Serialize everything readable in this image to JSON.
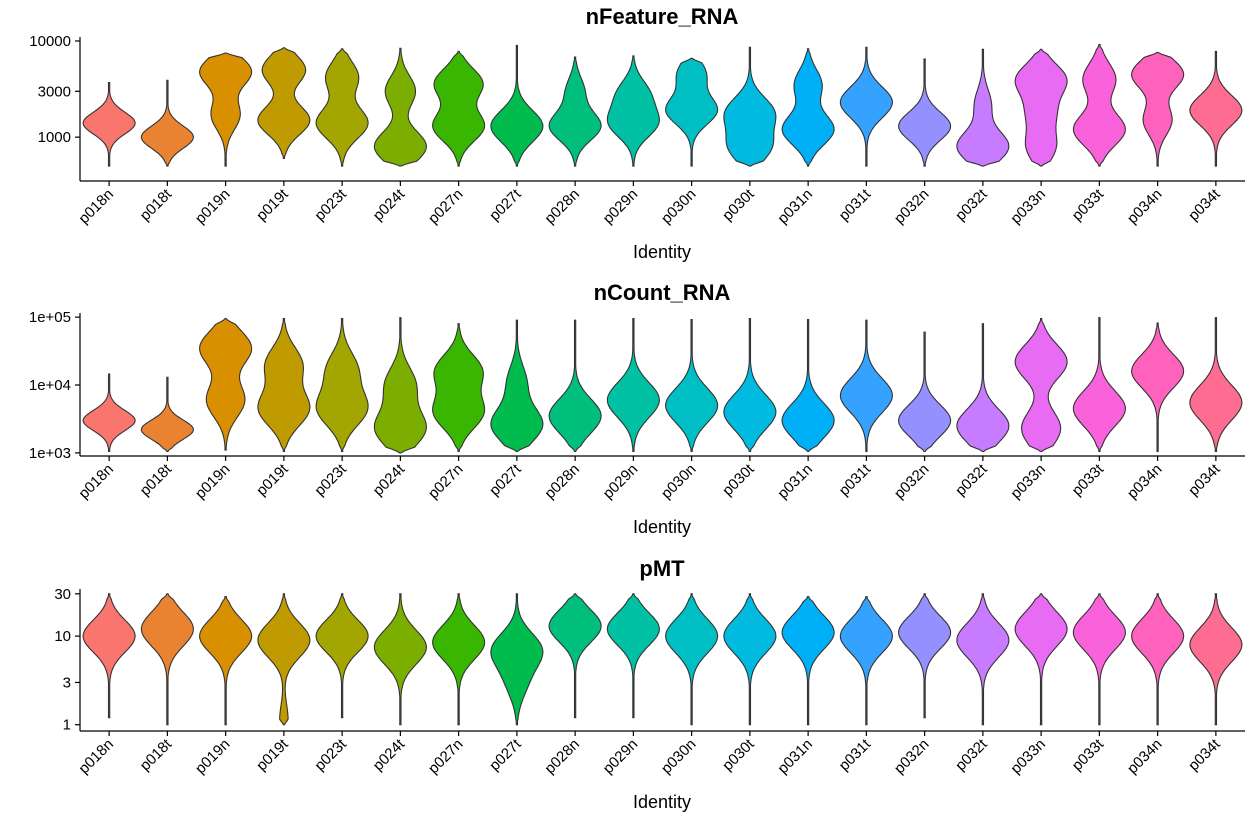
{
  "chart_data": [
    {
      "type": "violin",
      "title": "nFeature_RNA",
      "xlabel": "Identity",
      "ylabel": "",
      "yscale": "log",
      "ylim": [
        350,
        11000
      ],
      "yticks": [
        1000,
        3000,
        10000
      ],
      "ytick_labels": [
        "1000",
        "3000",
        "10000"
      ],
      "grid": false,
      "legend": "none",
      "categories": [
        "p018n",
        "p018t",
        "p019n",
        "p019t",
        "p023t",
        "p024t",
        "p027n",
        "p027t",
        "p028n",
        "p029n",
        "p030n",
        "p030t",
        "p031n",
        "p031t",
        "p032n",
        "p032t",
        "p033n",
        "p033t",
        "p034n",
        "p034t"
      ],
      "colors": [
        "#F8766D",
        "#EA8331",
        "#D89000",
        "#C09B00",
        "#A3A500",
        "#7CAE00",
        "#39B600",
        "#00BB4E",
        "#00BF7D",
        "#00C1A3",
        "#00BFC4",
        "#00BAE0",
        "#00B0F6",
        "#35A2FF",
        "#9590FF",
        "#C77CFF",
        "#E76BF3",
        "#FA62DB",
        "#FF62BC",
        "#FF6C91"
      ],
      "series": [
        {
          "min": 500,
          "max": 3700,
          "peaks": [
            [
              1400,
              0.9
            ]
          ]
        },
        {
          "min": 500,
          "max": 3900,
          "peaks": [
            [
              1000,
              1.0
            ]
          ]
        },
        {
          "min": 500,
          "max": 7500,
          "peaks": [
            [
              4800,
              1.0
            ],
            [
              1700,
              0.55
            ]
          ]
        },
        {
          "min": 600,
          "max": 8500,
          "peaks": [
            [
              5000,
              0.75
            ],
            [
              1500,
              0.9
            ]
          ]
        },
        {
          "min": 500,
          "max": 8300,
          "peaks": [
            [
              4200,
              0.6
            ],
            [
              1400,
              0.95
            ]
          ]
        },
        {
          "min": 500,
          "max": 8400,
          "peaks": [
            [
              3000,
              0.55
            ],
            [
              800,
              0.95
            ]
          ]
        },
        {
          "min": 500,
          "max": 7800,
          "peaks": [
            [
              3600,
              0.85
            ],
            [
              1300,
              0.9
            ]
          ]
        },
        {
          "min": 500,
          "max": 9000,
          "peaks": [
            [
              1300,
              0.95
            ]
          ]
        },
        {
          "min": 500,
          "max": 6800,
          "peaks": [
            [
              3000,
              0.35
            ],
            [
              1300,
              1.0
            ]
          ]
        },
        {
          "min": 500,
          "max": 7000,
          "peaks": [
            [
              2800,
              0.55
            ],
            [
              1400,
              0.85
            ]
          ]
        },
        {
          "min": 500,
          "max": 6600,
          "peaks": [
            [
              4500,
              0.5
            ],
            [
              1900,
              0.9
            ]
          ]
        },
        {
          "min": 500,
          "max": 8600,
          "peaks": [
            [
              1800,
              0.8
            ],
            [
              800,
              0.7
            ]
          ]
        },
        {
          "min": 500,
          "max": 8300,
          "peaks": [
            [
              3500,
              0.45
            ],
            [
              1200,
              0.85
            ]
          ]
        },
        {
          "min": 500,
          "max": 8600,
          "peaks": [
            [
              2300,
              1.0
            ]
          ]
        },
        {
          "min": 500,
          "max": 6500,
          "peaks": [
            [
              1300,
              0.75
            ]
          ]
        },
        {
          "min": 500,
          "max": 8200,
          "peaks": [
            [
              2200,
              0.25
            ],
            [
              800,
              0.8
            ]
          ]
        },
        {
          "min": 500,
          "max": 8200,
          "peaks": [
            [
              4000,
              0.95
            ],
            [
              1800,
              0.5
            ],
            [
              800,
              0.55
            ]
          ]
        },
        {
          "min": 500,
          "max": 9200,
          "peaks": [
            [
              4000,
              0.6
            ],
            [
              1200,
              0.95
            ]
          ]
        },
        {
          "min": 500,
          "max": 7600,
          "peaks": [
            [
              4500,
              1.0
            ],
            [
              1500,
              0.55
            ]
          ]
        },
        {
          "min": 500,
          "max": 7800,
          "peaks": [
            [
              1900,
              0.95
            ]
          ]
        }
      ]
    },
    {
      "type": "violin",
      "title": "nCount_RNA",
      "xlabel": "Identity",
      "ylabel": "",
      "yscale": "log",
      "ylim": [
        900,
        115000
      ],
      "yticks": [
        1000,
        10000,
        100000
      ],
      "ytick_labels": [
        "1e+03",
        "1e+04",
        "1e+05"
      ],
      "grid": false,
      "legend": "none",
      "categories": [
        "p018n",
        "p018t",
        "p019n",
        "p019t",
        "p023t",
        "p024t",
        "p027n",
        "p027t",
        "p028n",
        "p029n",
        "p030n",
        "p030t",
        "p031n",
        "p031t",
        "p032n",
        "p032t",
        "p033n",
        "p033t",
        "p034n",
        "p034t"
      ],
      "colors": [
        "#F8766D",
        "#EA8331",
        "#D89000",
        "#C09B00",
        "#A3A500",
        "#7CAE00",
        "#39B600",
        "#00BB4E",
        "#00BF7D",
        "#00C1A3",
        "#00BFC4",
        "#00BAE0",
        "#00B0F6",
        "#35A2FF",
        "#9590FF",
        "#C77CFF",
        "#E76BF3",
        "#FA62DB",
        "#FF62BC",
        "#FF6C91"
      ],
      "series": [
        {
          "min": 1050,
          "max": 14500,
          "peaks": [
            [
              3000,
              0.9
            ]
          ]
        },
        {
          "min": 1050,
          "max": 13000,
          "peaks": [
            [
              2200,
              1.0
            ]
          ]
        },
        {
          "min": 1100,
          "max": 95000,
          "peaks": [
            [
              35000,
              0.95
            ],
            [
              6000,
              0.7
            ]
          ]
        },
        {
          "min": 1050,
          "max": 95000,
          "peaks": [
            [
              20000,
              0.65
            ],
            [
              4500,
              0.9
            ]
          ]
        },
        {
          "min": 1050,
          "max": 95000,
          "peaks": [
            [
              17000,
              0.55
            ],
            [
              4500,
              0.9
            ]
          ]
        },
        {
          "min": 1000,
          "max": 98000,
          "peaks": [
            [
              10000,
              0.6
            ],
            [
              2300,
              1.0
            ]
          ]
        },
        {
          "min": 1050,
          "max": 80000,
          "peaks": [
            [
              16000,
              0.85
            ],
            [
              4000,
              0.9
            ]
          ]
        },
        {
          "min": 1050,
          "max": 90000,
          "peaks": [
            [
              11000,
              0.35
            ],
            [
              2600,
              0.95
            ]
          ]
        },
        {
          "min": 1050,
          "max": 90000,
          "peaks": [
            [
              3500,
              0.95
            ]
          ]
        },
        {
          "min": 1050,
          "max": 95000,
          "peaks": [
            [
              6000,
              1.0
            ]
          ]
        },
        {
          "min": 1050,
          "max": 92000,
          "peaks": [
            [
              5000,
              0.9
            ]
          ]
        },
        {
          "min": 1050,
          "max": 95000,
          "peaks": [
            [
              4000,
              0.85
            ]
          ]
        },
        {
          "min": 1050,
          "max": 92000,
          "peaks": [
            [
              3000,
              0.9
            ]
          ]
        },
        {
          "min": 1050,
          "max": 90000,
          "peaks": [
            [
              7000,
              1.0
            ]
          ]
        },
        {
          "min": 1050,
          "max": 60000,
          "peaks": [
            [
              3000,
              0.95
            ]
          ]
        },
        {
          "min": 1050,
          "max": 80000,
          "peaks": [
            [
              2500,
              0.95
            ]
          ]
        },
        {
          "min": 1050,
          "max": 95000,
          "peaks": [
            [
              22000,
              1.0
            ],
            [
              2300,
              0.75
            ]
          ]
        },
        {
          "min": 1050,
          "max": 98000,
          "peaks": [
            [
              4500,
              0.95
            ]
          ]
        },
        {
          "min": 1050,
          "max": 82000,
          "peaks": [
            [
              16000,
              1.0
            ]
          ]
        },
        {
          "min": 1050,
          "max": 98000,
          "peaks": [
            [
              5500,
              0.95
            ]
          ]
        }
      ]
    },
    {
      "type": "violin",
      "title": "pMT",
      "xlabel": "Identity",
      "ylabel": "",
      "yscale": "log",
      "ylim": [
        0.85,
        34
      ],
      "yticks": [
        1,
        3,
        10,
        30
      ],
      "ytick_labels": [
        "1",
        "3",
        "10",
        "30"
      ],
      "grid": false,
      "legend": "none",
      "categories": [
        "p018n",
        "p018t",
        "p019n",
        "p019t",
        "p023t",
        "p024t",
        "p027n",
        "p027t",
        "p028n",
        "p029n",
        "p030n",
        "p030t",
        "p031n",
        "p031t",
        "p032n",
        "p032t",
        "p033n",
        "p033t",
        "p034n",
        "p034t"
      ],
      "colors": [
        "#F8766D",
        "#EA8331",
        "#D89000",
        "#C09B00",
        "#A3A500",
        "#7CAE00",
        "#39B600",
        "#00BB4E",
        "#00BF7D",
        "#00C1A3",
        "#00BFC4",
        "#00BAE0",
        "#00B0F6",
        "#35A2FF",
        "#9590FF",
        "#C77CFF",
        "#E76BF3",
        "#FA62DB",
        "#FF62BC",
        "#FF6C91"
      ],
      "series": [
        {
          "min": 1.2,
          "max": 30,
          "peaks": [
            [
              10,
              0.85
            ]
          ]
        },
        {
          "min": 1.0,
          "max": 30,
          "peaks": [
            [
              12,
              1.0
            ]
          ]
        },
        {
          "min": 1.0,
          "max": 28,
          "peaks": [
            [
              10,
              0.8
            ]
          ]
        },
        {
          "min": 1.0,
          "max": 30,
          "peaks": [
            [
              9,
              0.95
            ],
            [
              1.1,
              0.15
            ]
          ]
        },
        {
          "min": 1.2,
          "max": 30,
          "peaks": [
            [
              10,
              0.85
            ]
          ]
        },
        {
          "min": 1.0,
          "max": 30,
          "peaks": [
            [
              7.5,
              0.85
            ]
          ]
        },
        {
          "min": 1.0,
          "max": 30,
          "peaks": [
            [
              8.5,
              0.85
            ]
          ]
        },
        {
          "min": 1.0,
          "max": 30,
          "peaks": [
            [
              7,
              0.95
            ],
            [
              3,
              0.35
            ]
          ]
        },
        {
          "min": 1.2,
          "max": 30,
          "peaks": [
            [
              13,
              0.95
            ]
          ]
        },
        {
          "min": 1.2,
          "max": 30,
          "peaks": [
            [
              12,
              0.9
            ]
          ]
        },
        {
          "min": 1.0,
          "max": 30,
          "peaks": [
            [
              10,
              0.95
            ]
          ]
        },
        {
          "min": 1.0,
          "max": 30,
          "peaks": [
            [
              10,
              1.0
            ]
          ]
        },
        {
          "min": 1.0,
          "max": 28,
          "peaks": [
            [
              11,
              0.8
            ]
          ]
        },
        {
          "min": 1.0,
          "max": 28,
          "peaks": [
            [
              10,
              0.9
            ]
          ]
        },
        {
          "min": 1.2,
          "max": 30,
          "peaks": [
            [
              11,
              0.85
            ]
          ]
        },
        {
          "min": 1.0,
          "max": 30,
          "peaks": [
            [
              9,
              0.85
            ]
          ]
        },
        {
          "min": 1.0,
          "max": 30,
          "peaks": [
            [
              12,
              0.75
            ]
          ]
        },
        {
          "min": 1.0,
          "max": 30,
          "peaks": [
            [
              11,
              0.95
            ]
          ]
        },
        {
          "min": 1.0,
          "max": 30,
          "peaks": [
            [
              10,
              0.8
            ]
          ]
        },
        {
          "min": 1.0,
          "max": 30,
          "peaks": [
            [
              8,
              0.85
            ]
          ]
        }
      ]
    }
  ]
}
